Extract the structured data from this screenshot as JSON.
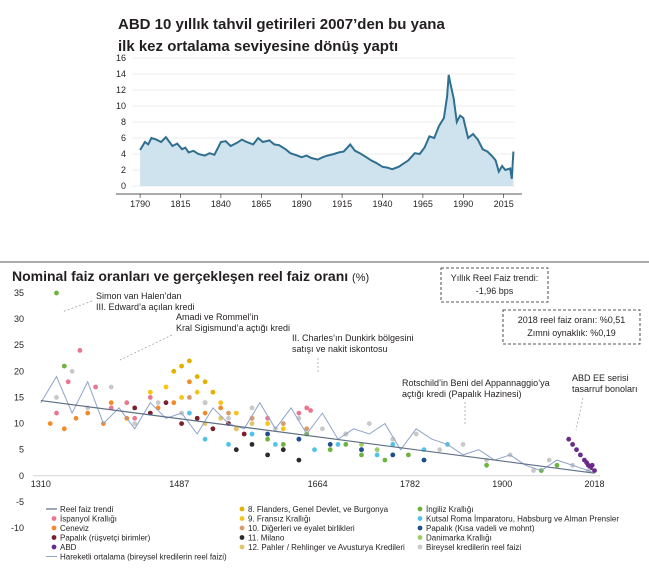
{
  "chart_data": [
    {
      "type": "area",
      "title_lines": [
        "ABD 10 yıllık tahvil getirileri 2007’den bu yana",
        "ilk kez ortalama seviyesine dönüş yaptı"
      ],
      "xlabel": "",
      "ylabel": "",
      "x_ticks": [
        "1790",
        "1815",
        "1840",
        "1865",
        "1890",
        "1915",
        "1940",
        "1965",
        "1990",
        "2015"
      ],
      "y_ticks": [
        "0",
        "2",
        "4",
        "6",
        "8",
        "10",
        "12",
        "14",
        "16"
      ],
      "xlim": [
        1785,
        2022
      ],
      "ylim": [
        0,
        16
      ],
      "grid": "horizontal",
      "colors": {
        "line": "#2f6f8f",
        "fill": "#cfe3ee"
      },
      "x": [
        1790,
        1793,
        1795,
        1797,
        1800,
        1803,
        1806,
        1810,
        1813,
        1816,
        1818,
        1820,
        1823,
        1826,
        1830,
        1833,
        1836,
        1840,
        1843,
        1846,
        1850,
        1853,
        1856,
        1860,
        1863,
        1866,
        1870,
        1873,
        1876,
        1880,
        1883,
        1886,
        1890,
        1893,
        1896,
        1900,
        1903,
        1906,
        1910,
        1913,
        1916,
        1920,
        1923,
        1926,
        1930,
        1933,
        1936,
        1940,
        1943,
        1946,
        1950,
        1953,
        1956,
        1960,
        1963,
        1966,
        1969,
        1972,
        1975,
        1978,
        1980,
        1981,
        1982,
        1984,
        1986,
        1988,
        1990,
        1993,
        1996,
        1999,
        2002,
        2005,
        2008,
        2010,
        2012,
        2014,
        2016,
        2019,
        2020,
        2021
      ],
      "y": [
        4.5,
        5.5,
        5.2,
        6.0,
        5.8,
        5.5,
        6.1,
        5.0,
        5.3,
        4.6,
        4.8,
        4.2,
        4.4,
        4.0,
        3.8,
        4.1,
        3.9,
        5.5,
        5.6,
        5.0,
        5.4,
        5.8,
        5.5,
        5.2,
        6.0,
        5.5,
        5.7,
        5.2,
        5.1,
        4.6,
        4.1,
        3.9,
        3.6,
        3.8,
        3.5,
        3.3,
        3.6,
        3.8,
        4.0,
        4.2,
        4.3,
        5.2,
        4.4,
        4.1,
        3.6,
        3.2,
        2.9,
        2.4,
        2.3,
        2.1,
        2.4,
        2.8,
        3.2,
        4.1,
        4.0,
        4.8,
        6.2,
        6.0,
        7.5,
        8.5,
        11.2,
        13.9,
        12.8,
        11.0,
        8.0,
        8.8,
        8.5,
        6.0,
        6.5,
        5.8,
        4.6,
        4.3,
        3.7,
        3.2,
        1.8,
        2.5,
        2.0,
        2.2,
        0.9,
        4.3
      ]
    },
    {
      "type": "scatter",
      "title": "Nominal faiz oranları ve gerçekleşen reel faiz oranı",
      "title_unit": "(%)",
      "xlabel": "",
      "ylabel": "",
      "x_ticks": [
        "1310",
        "1487",
        "1664",
        "1782",
        "1900",
        "2018"
      ],
      "y_ticks": [
        "35",
        "30",
        "25",
        "20",
        "15",
        "10",
        "5",
        "0",
        "-5",
        "-10"
      ],
      "xlim": [
        1300,
        2025
      ],
      "ylim": [
        -10,
        35
      ],
      "annotations": [
        {
          "lines": [
            "Simon van Halen’dan",
            "III. Edward’a açılan kredi"
          ]
        },
        {
          "lines": [
            "Amadi ve Rommel’in",
            "Kral Sigismund’a açtığı kredi"
          ]
        },
        {
          "lines": [
            "II. Charles’ın Dunkirk bölgesini",
            "satışı ve nakit iskontosu"
          ]
        },
        {
          "lines": [
            "Rotschild’in Beni del Appannaggio’ya",
            "açtığı kredi (Papalık Hazinesi)"
          ]
        },
        {
          "lines": [
            "ABD EE serisi",
            "tasarruf bonoları"
          ]
        }
      ],
      "info_boxes": [
        {
          "lines": [
            "Yıllık Reel Faiz trendi:",
            "-1,96 bps"
          ]
        },
        {
          "lines": [
            "2018 reel faiz oranı: %0,51",
            "Zımni oynaklık: %0,19"
          ]
        }
      ],
      "trend": {
        "name": "Reel faiz trendi",
        "x": [
          1310,
          2018
        ],
        "y": [
          14.4,
          0.5
        ]
      },
      "moving_average": {
        "name": "Hareketli ortalama (bireysel kredilerin reel faizi)",
        "x": [
          1310,
          1330,
          1350,
          1370,
          1390,
          1410,
          1430,
          1450,
          1470,
          1490,
          1510,
          1530,
          1550,
          1570,
          1590,
          1610,
          1630,
          1650,
          1670,
          1690,
          1710,
          1730,
          1750,
          1770,
          1790,
          1810,
          1830,
          1850,
          1870,
          1890,
          1910,
          1930,
          1950,
          1970,
          1990,
          2010,
          2018
        ],
        "y": [
          14,
          19,
          12,
          18,
          10,
          13,
          9,
          14,
          11,
          12,
          8,
          13,
          10,
          9,
          14,
          9,
          13,
          8,
          12,
          7,
          9,
          8,
          10,
          5,
          9,
          7,
          6,
          4,
          5,
          3,
          4,
          2,
          1,
          3,
          2,
          1,
          0.5
        ]
      },
      "series": [
        {
          "name": "İspanyol Krallığı",
          "color": "#e8778f",
          "points": [
            [
              1330,
              12
            ],
            [
              1345,
              18
            ],
            [
              1360,
              24
            ],
            [
              1380,
              17
            ],
            [
              1400,
              13
            ],
            [
              1420,
              14
            ],
            [
              1430,
              11
            ],
            [
              1450,
              15
            ],
            [
              1600,
              11
            ],
            [
              1640,
              12
            ],
            [
              1650,
              13
            ],
            [
              1655,
              12.5
            ]
          ]
        },
        {
          "name": "Ceneviz",
          "color": "#f28b2b",
          "points": [
            [
              1322,
              10
            ],
            [
              1340,
              9
            ],
            [
              1355,
              11
            ],
            [
              1370,
              12
            ],
            [
              1390,
              10
            ],
            [
              1400,
              14
            ],
            [
              1420,
              11
            ],
            [
              1460,
              13
            ],
            [
              1480,
              14
            ],
            [
              1500,
              18
            ],
            [
              1520,
              12
            ],
            [
              1540,
              13
            ],
            [
              1560,
              9
            ],
            [
              1580,
              11
            ]
          ]
        },
        {
          "name": "Papalık (rüşvetçi birimler)",
          "color": "#7a1f2b",
          "points": [
            [
              1430,
              13
            ],
            [
              1450,
              12
            ],
            [
              1470,
              14
            ],
            [
              1490,
              10
            ],
            [
              1510,
              11
            ],
            [
              1530,
              9
            ],
            [
              1550,
              10
            ],
            [
              1570,
              8
            ]
          ]
        },
        {
          "name": "ABD",
          "color": "#6a2a8a",
          "points": [
            [
              1985,
              7
            ],
            [
              1990,
              6
            ],
            [
              1995,
              5
            ],
            [
              2000,
              4
            ],
            [
              2005,
              3
            ],
            [
              2008,
              2.5
            ],
            [
              2010,
              2
            ],
            [
              2013,
              1.5
            ],
            [
              2015,
              2
            ],
            [
              2018,
              1
            ]
          ]
        },
        {
          "name": "Flanders, Genel Devlet, ve Burgonya",
          "color": "#e2b100",
          "points": [
            [
              1480,
              20
            ],
            [
              1490,
              21
            ],
            [
              1500,
              22
            ],
            [
              1510,
              19
            ],
            [
              1520,
              18
            ],
            [
              1530,
              16
            ]
          ]
        },
        {
          "name": "Fransız Krallığı",
          "color": "#f5c518",
          "points": [
            [
              1450,
              16
            ],
            [
              1470,
              17
            ],
            [
              1490,
              15
            ],
            [
              1510,
              16
            ],
            [
              1540,
              14
            ],
            [
              1560,
              12
            ],
            [
              1600,
              10
            ],
            [
              1620,
              9
            ]
          ]
        },
        {
          "name": "Diğerleri ve eyalet birlikleri",
          "color": "#d89b6a",
          "points": [
            [
              1500,
              15
            ],
            [
              1520,
              14
            ],
            [
              1550,
              12
            ],
            [
              1580,
              11
            ],
            [
              1620,
              10
            ],
            [
              1650,
              9
            ]
          ]
        },
        {
          "name": "Milano",
          "color": "#2b2b2b",
          "points": [
            [
              1560,
              5
            ],
            [
              1580,
              6
            ],
            [
              1600,
              4
            ],
            [
              1620,
              5
            ],
            [
              1640,
              3
            ]
          ]
        },
        {
          "name": "Pahler / Rehlinger ve Avusturya Kredileri",
          "color": "#e3c46b",
          "points": [
            [
              1520,
              10
            ],
            [
              1540,
              11
            ],
            [
              1560,
              9
            ],
            [
              1580,
              10
            ]
          ]
        },
        {
          "name": "İngiliz Krallığı",
          "color": "#6db33f",
          "points": [
            [
              1330,
              35
            ],
            [
              1340,
              21
            ],
            [
              1600,
              7
            ],
            [
              1620,
              6
            ],
            [
              1650,
              8
            ],
            [
              1680,
              5
            ],
            [
              1700,
              6
            ],
            [
              1720,
              4
            ],
            [
              1750,
              3
            ],
            [
              1780,
              4
            ],
            [
              1800,
              3
            ],
            [
              1880,
              2
            ],
            [
              1950,
              1
            ],
            [
              1970,
              2
            ]
          ]
        },
        {
          "name": "Kutsal Roma İmparatoru, Habsburg ve Alman Prensler",
          "color": "#4fc3e8",
          "points": [
            [
              1500,
              12
            ],
            [
              1520,
              7
            ],
            [
              1550,
              6
            ],
            [
              1580,
              8
            ],
            [
              1610,
              6
            ],
            [
              1640,
              7
            ],
            [
              1660,
              5
            ],
            [
              1690,
              6
            ],
            [
              1720,
              5
            ],
            [
              1740,
              4
            ],
            [
              1760,
              6
            ],
            [
              1800,
              5
            ],
            [
              1830,
              6
            ]
          ]
        },
        {
          "name": "Papalık (Kısa vadeli ve mohnt)",
          "color": "#1f4e8c",
          "points": [
            [
              1600,
              8
            ],
            [
              1640,
              7
            ],
            [
              1680,
              6
            ],
            [
              1720,
              5
            ],
            [
              1760,
              4
            ],
            [
              1800,
              3
            ]
          ]
        },
        {
          "name": "Danimarka Krallığı",
          "color": "#9ccc65",
          "points": [
            [
              1700,
              8
            ],
            [
              1720,
              6
            ],
            [
              1740,
              5
            ],
            [
              1760,
              7
            ]
          ]
        },
        {
          "name": "Bireysel kredilerin reel faizi",
          "color": "#c9c9c9",
          "points": [
            [
              1330,
              15
            ],
            [
              1350,
              20
            ],
            [
              1370,
              13
            ],
            [
              1400,
              17
            ],
            [
              1430,
              10
            ],
            [
              1460,
              14
            ],
            [
              1490,
              12
            ],
            [
              1520,
              14
            ],
            [
              1550,
              11
            ],
            [
              1580,
              13
            ],
            [
              1610,
              9
            ],
            [
              1640,
              11
            ],
            [
              1670,
              9
            ],
            [
              1700,
              8
            ],
            [
              1730,
              10
            ],
            [
              1760,
              7
            ],
            [
              1790,
              8
            ],
            [
              1820,
              5
            ],
            [
              1850,
              6
            ],
            [
              1880,
              3
            ],
            [
              1910,
              4
            ],
            [
              1940,
              1
            ],
            [
              1960,
              3
            ],
            [
              1990,
              2
            ],
            [
              2010,
              1
            ]
          ]
        }
      ],
      "legend_placement": "bottom",
      "legend_columns": [
        [
          "Reel faiz trendi",
          "İspanyol Krallığı",
          "Ceneviz",
          "Papalık (rüşvetçi birimler)",
          "ABD",
          "Hareketli ortalama (bireysel kredilerin reel faizi)"
        ],
        [
          "8. Flanders, Genel Devlet, ve Burgonya",
          "9. Fransız Krallığı",
          "10. Diğerleri ve eyalet birlikleri",
          "11. Milano",
          "12. Pahler / Rehlinger ve Avusturya Kredileri"
        ],
        [
          "İngiliz Krallığı",
          "Kutsal Roma İmparatoru, Habsburg ve Alman Prensler",
          "Papalık (Kısa vadeli ve mohnt)",
          "Danimarka Krallığı",
          "Bireysel kredilerin reel faizi"
        ]
      ]
    }
  ]
}
